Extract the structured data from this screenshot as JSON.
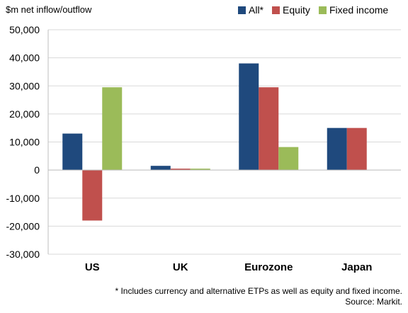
{
  "chart_data": {
    "type": "bar",
    "ylabel": "$m net inflow/outflow",
    "categories": [
      "US",
      "UK",
      "Eurozone",
      "Japan"
    ],
    "series": [
      {
        "name": "All*",
        "color": "#1f497d",
        "values": [
          13000,
          1500,
          38000,
          15000
        ]
      },
      {
        "name": "Equity",
        "color": "#c0504d",
        "values": [
          -18000,
          500,
          29500,
          15000
        ]
      },
      {
        "name": "Fixed income",
        "color": "#9bbb59",
        "values": [
          29500,
          500,
          8200,
          null
        ]
      }
    ],
    "ylim": [
      -30000,
      50000
    ],
    "yticks": [
      "50,000",
      "40,000",
      "30,000",
      "20,000",
      "10,000",
      "0",
      "-10,000",
      "-20,000",
      "-30,000"
    ],
    "ytick_values": [
      50000,
      40000,
      30000,
      20000,
      10000,
      0,
      -10000,
      -20000,
      -30000
    ],
    "grid": true,
    "legend": "top-right"
  },
  "footnote": {
    "line1": "* Includes currency and alternative ETPs as well as equity and fixed income.",
    "line2": "Source: Markit."
  }
}
